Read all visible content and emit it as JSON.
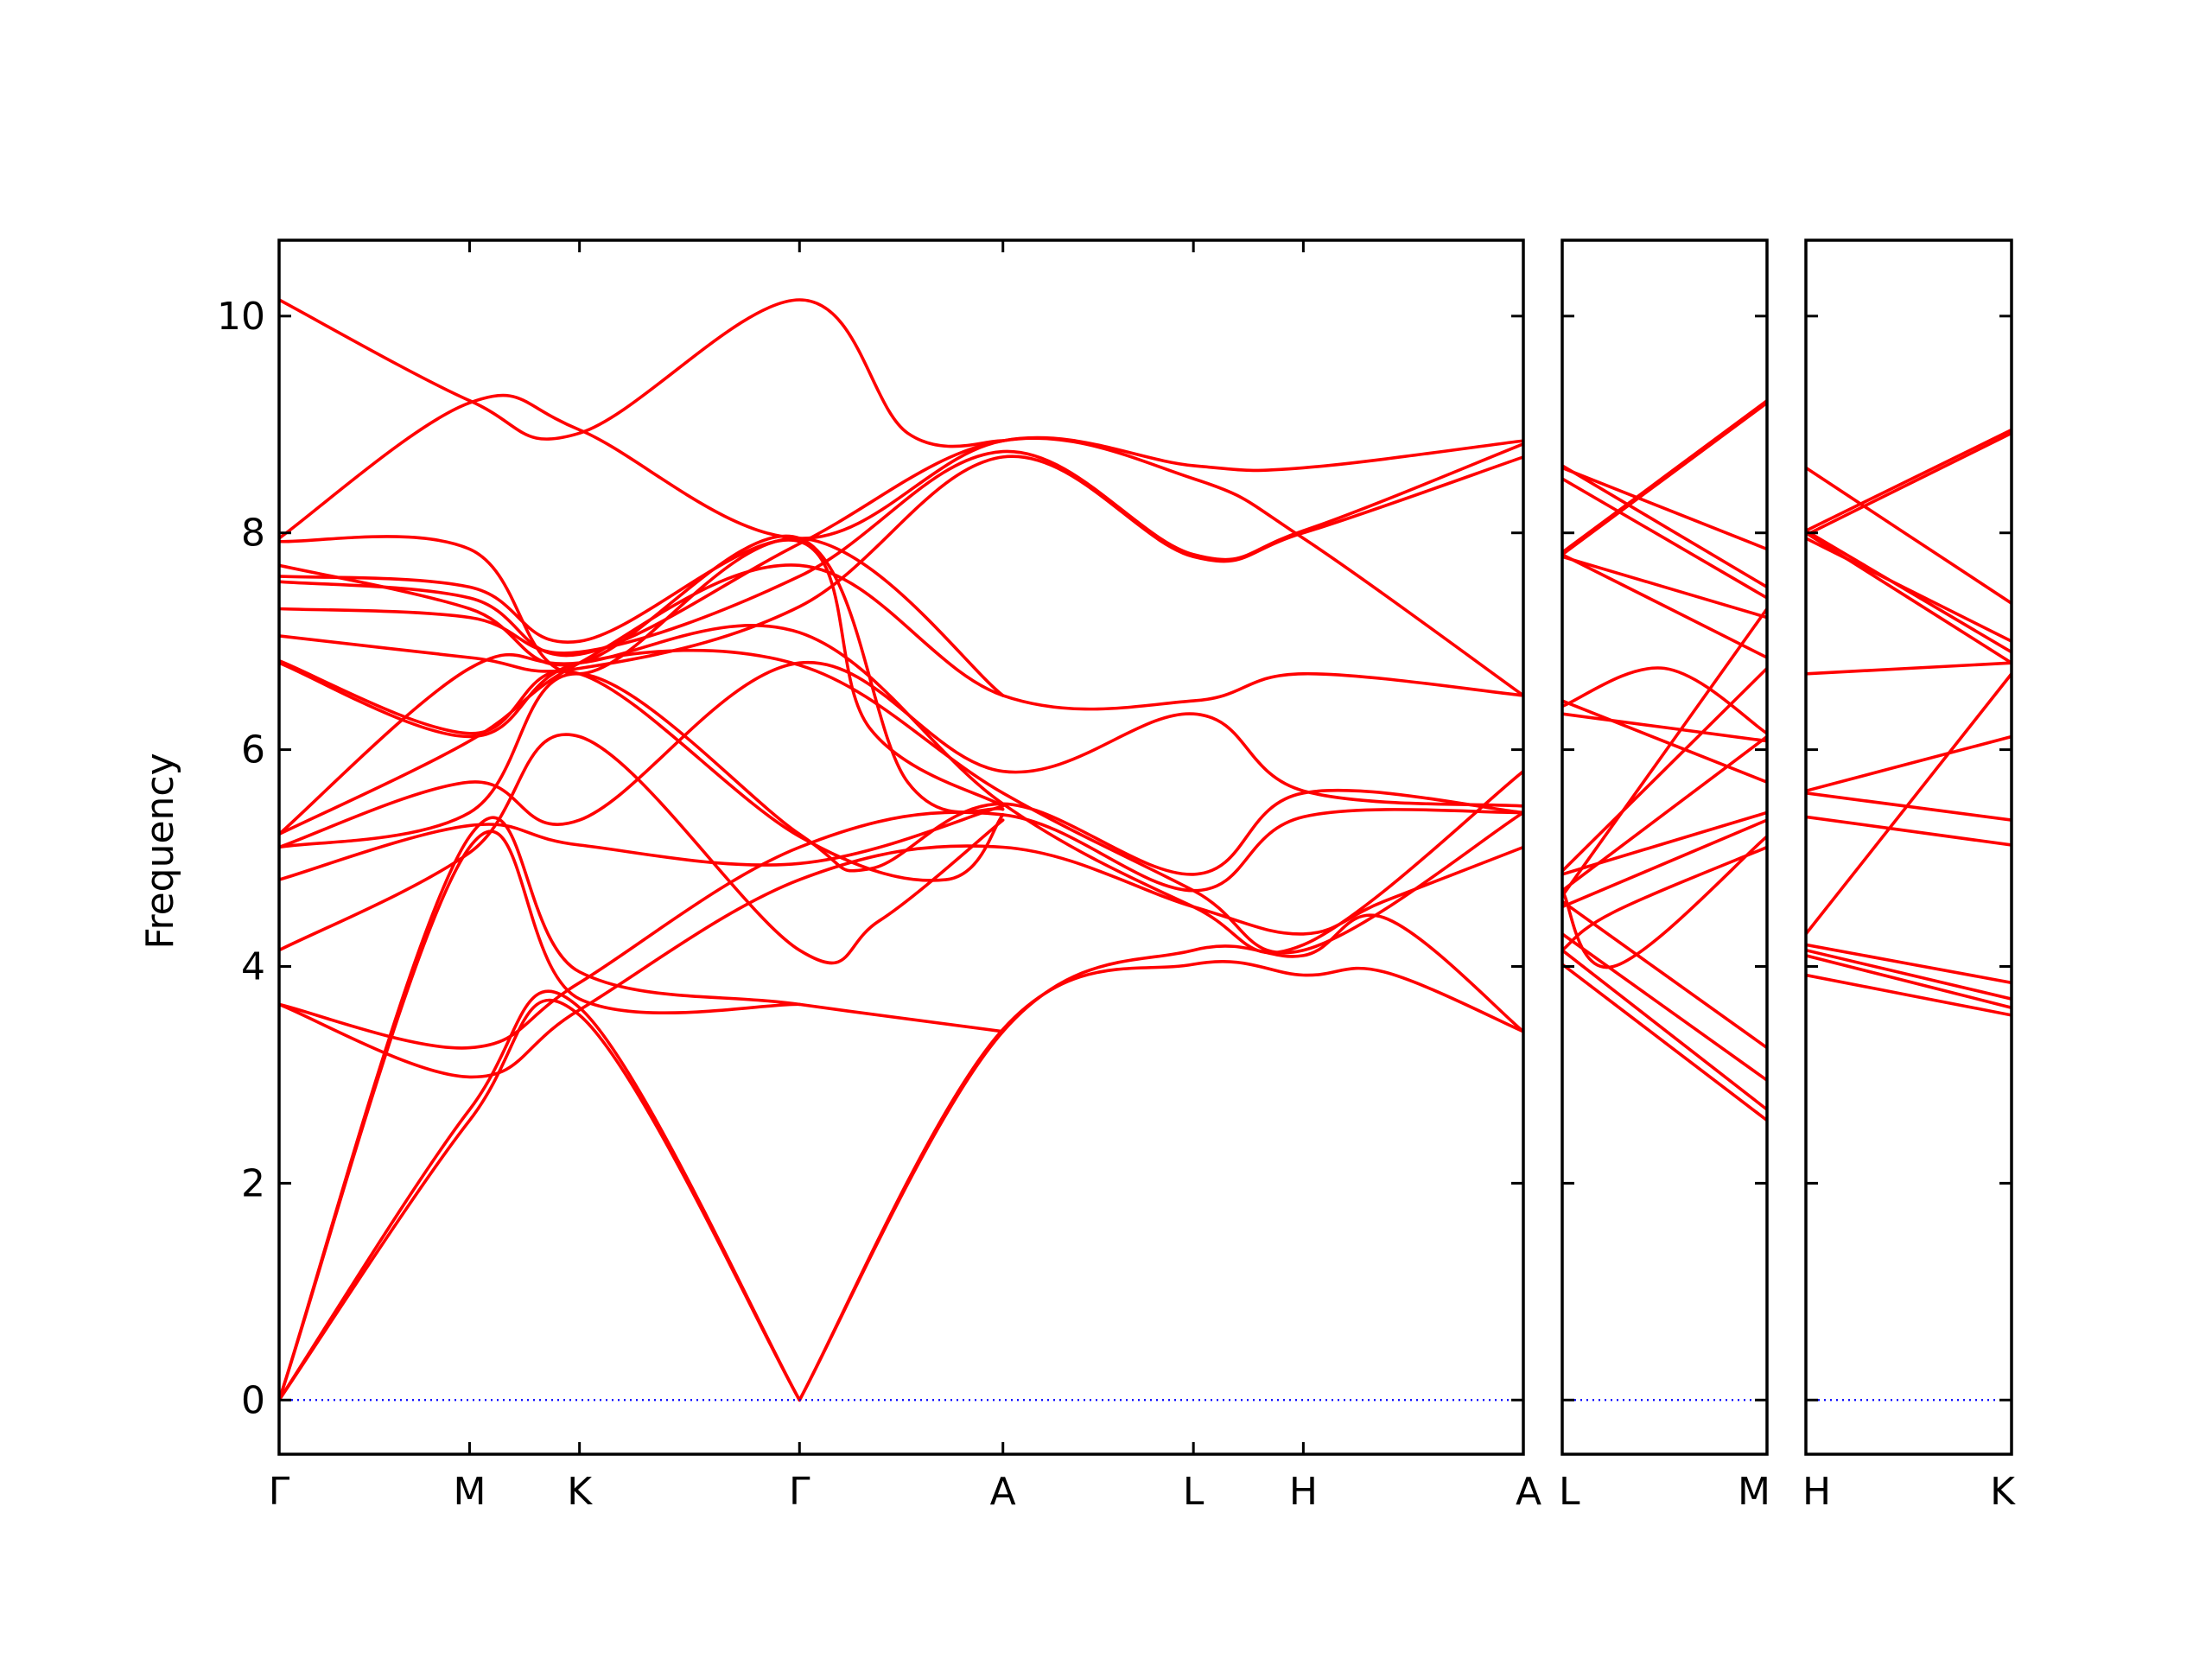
{
  "chart_data": {
    "type": "line",
    "ylabel": "Frequency",
    "ylim": [
      -0.5,
      10.7
    ],
    "yticks": [
      0,
      2,
      4,
      6,
      8,
      10
    ],
    "band_color": "#ff0000",
    "zero_line_color": "#0000ff",
    "panels": [
      {
        "name": "panel-main",
        "x_labels": [
          "Γ",
          "M",
          "K",
          "Γ",
          "A",
          "L",
          "H",
          "A"
        ],
        "x_positions": [
          0,
          1,
          1.577,
          2.732,
          3.8,
          4.8,
          5.377,
          6.532
        ],
        "bands": [
          {
            "x": [
              0,
              1,
              1.577,
              2.732
            ],
            "y": [
              0,
              2.58,
              3.55,
              0
            ]
          },
          {
            "x": [
              0,
              1,
              1.577,
              2.732
            ],
            "y": [
              0,
              2.68,
              3.62,
              0
            ]
          },
          {
            "x": [
              0,
              1,
              1.577,
              2.732
            ],
            "y": [
              0,
              5.1,
              3.7,
              3.65
            ]
          },
          {
            "x": [
              0,
              1,
              1.577,
              2.732,
              3.8
            ],
            "y": [
              0,
              5.2,
              3.95,
              3.65,
              3.4
            ]
          },
          {
            "x": [
              2.732,
              3.8,
              4.8,
              5.377,
              5.8,
              6.532
            ],
            "y": [
              0,
              3.4,
              4.15,
              4.1,
              4.45,
              3.4
            ]
          },
          {
            "x": [
              2.732,
              3.8,
              4.8,
              5.377,
              5.8,
              6.532
            ],
            "y": [
              0,
              3.42,
              4.02,
              3.92,
              3.95,
              3.4
            ]
          },
          {
            "x": [
              0,
              1,
              1.577,
              2.732,
              3.8,
              4.8,
              5.377,
              5.8,
              6.532
            ],
            "y": [
              3.65,
              2.98,
              3.6,
              4.8,
              5.1,
              4.55,
              4.3,
              4.6,
              5.1
            ]
          },
          {
            "x": [
              0,
              1,
              1.577,
              2.732,
              3.8,
              4.8,
              5.377,
              6.532
            ],
            "y": [
              3.65,
              3.25,
              3.85,
              5.1,
              5.4,
              4.7,
              5.38,
              5.42
            ]
          },
          {
            "x": [
              0,
              1,
              1.577,
              2.732,
              3.15,
              3.8
            ],
            "y": [
              4.15,
              5.05,
              6.12,
              4.15,
              4.42,
              5.35
            ]
          },
          {
            "x": [
              0,
              1,
              1.577,
              2.732,
              3.8
            ],
            "y": [
              4.8,
              5.3,
              5.12,
              4.95,
              5.48
            ]
          },
          {
            "x": [
              0,
              1,
              1.577,
              2.732,
              3.1,
              3.8,
              4.8,
              5.377,
              6.532
            ],
            "y": [
              5.1,
              5.42,
              6.7,
              5.22,
              4.9,
              5.5,
              4.85,
              5.6,
              5.42
            ]
          },
          {
            "x": [
              0,
              1,
              1.577,
              2.732,
              3.8,
              4.8,
              5.377,
              6.532
            ],
            "y": [
              5.1,
              5.7,
              5.35,
              6.8,
              5.8,
              6.33,
              5.62,
              5.48
            ]
          },
          {
            "x": [
              0,
              1,
              1.577,
              2.732,
              3.8,
              4.8,
              5.377,
              6.532
            ],
            "y": [
              5.22,
              6.08,
              6.8,
              7.7,
              6.5,
              6.45,
              6.7,
              6.5
            ]
          },
          {
            "x": [
              0,
              1,
              1.577,
              2.732,
              3.8,
              4.8,
              5.377,
              6.532
            ],
            "y": [
              5.22,
              6.75,
              6.8,
              7.08,
              5.5,
              4.55,
              4.2,
              5.8
            ]
          },
          {
            "x": [
              0,
              1,
              1.577,
              2.732,
              3.8,
              4.8,
              5.377,
              6.532
            ],
            "y": [
              6.8,
              6.12,
              6.8,
              6.78,
              5.6,
              4.7,
              4.15,
              5.42
            ]
          },
          {
            "x": [
              0,
              1,
              1.577,
              2.732,
              3.5,
              3.8
            ],
            "y": [
              6.82,
              6.15,
              6.7,
              5.2,
              4.8,
              5.4
            ]
          },
          {
            "x": [
              0,
              1,
              1.577,
              2.732,
              3.8,
              4.8,
              5.377,
              6.532
            ],
            "y": [
              7.05,
              6.85,
              6.75,
              7.32,
              8.7,
              7.78,
              8.0,
              8.7
            ]
          },
          {
            "x": [
              0,
              1,
              1.577,
              2.732,
              3.8,
              4.8,
              5.377,
              6.532
            ],
            "y": [
              7.3,
              7.22,
              6.9,
              7.6,
              8.75,
              7.8,
              8.02,
              8.82
            ]
          },
          {
            "x": [
              0,
              1,
              1.577,
              2.732,
              3.8,
              4.8,
              5.377,
              6.532
            ],
            "y": [
              7.55,
              7.4,
              6.88,
              7.9,
              8.85,
              8.5,
              7.95,
              6.5
            ]
          },
          {
            "x": [
              0,
              1,
              1.577,
              2.732,
              3.1,
              3.8
            ],
            "y": [
              7.6,
              7.5,
              7.0,
              7.92,
              6.2,
              5.48
            ]
          },
          {
            "x": [
              0,
              1,
              1.577,
              2.732,
              3.3,
              3.8
            ],
            "y": [
              7.7,
              7.3,
              6.8,
              7.95,
              5.7,
              5.45
            ]
          },
          {
            "x": [
              0,
              1,
              1.577,
              2.732,
              3.8
            ],
            "y": [
              7.92,
              7.85,
              6.7,
              7.95,
              6.5
            ]
          },
          {
            "x": [
              0,
              1,
              1.577,
              2.732,
              3.8,
              4.8,
              5.377,
              6.532
            ],
            "y": [
              7.95,
              9.2,
              8.95,
              7.95,
              8.85,
              8.62,
              8.6,
              8.85
            ]
          },
          {
            "x": [
              0,
              1,
              1.577,
              2.732,
              3.3,
              3.8
            ],
            "y": [
              10.15,
              9.22,
              8.92,
              10.15,
              8.92,
              8.85
            ]
          },
          {
            "x": [
              0,
              6.532
            ],
            "y": [
              0,
              0
            ],
            "style": "zero"
          }
        ]
      },
      {
        "name": "panel-lm",
        "x_labels": [
          "L",
          "M"
        ],
        "x_positions": [
          0,
          1
        ],
        "bands": [
          {
            "x": [
              0,
              1
            ],
            "y": [
              4.02,
              2.58
            ]
          },
          {
            "x": [
              0,
              1
            ],
            "y": [
              4.15,
              2.68
            ]
          },
          {
            "x": [
              0,
              1
            ],
            "y": [
              4.3,
              2.95
            ]
          },
          {
            "x": [
              0,
              1
            ],
            "y": [
              4.6,
              3.25
            ]
          },
          {
            "x": [
              0,
              0.25,
              1
            ],
            "y": [
              4.15,
              4.5,
              5.1
            ]
          },
          {
            "x": [
              0,
              0.25,
              1
            ],
            "y": [
              4.7,
              4.0,
              5.2
            ]
          },
          {
            "x": [
              0,
              1
            ],
            "y": [
              4.55,
              5.35
            ]
          },
          {
            "x": [
              0,
              1
            ],
            "y": [
              4.85,
              5.42
            ]
          },
          {
            "x": [
              0,
              1
            ],
            "y": [
              6.45,
              5.7
            ]
          },
          {
            "x": [
              0,
              1
            ],
            "y": [
              6.33,
              6.08
            ]
          },
          {
            "x": [
              0,
              1
            ],
            "y": [
              4.7,
              6.12
            ]
          },
          {
            "x": [
              0,
              0.5,
              1
            ],
            "y": [
              6.4,
              6.75,
              6.15
            ]
          },
          {
            "x": [
              0,
              1
            ],
            "y": [
              4.88,
              6.75
            ]
          },
          {
            "x": [
              0,
              1
            ],
            "y": [
              7.8,
              6.85
            ]
          },
          {
            "x": [
              0,
              1
            ],
            "y": [
              7.78,
              7.22
            ]
          },
          {
            "x": [
              0,
              1
            ],
            "y": [
              4.65,
              7.3
            ]
          },
          {
            "x": [
              0,
              1
            ],
            "y": [
              8.5,
              7.4
            ]
          },
          {
            "x": [
              0,
              1
            ],
            "y": [
              8.62,
              7.5
            ]
          },
          {
            "x": [
              0,
              1
            ],
            "y": [
              8.6,
              7.85
            ]
          },
          {
            "x": [
              0,
              1
            ],
            "y": [
              7.8,
              9.2
            ]
          },
          {
            "x": [
              0,
              1
            ],
            "y": [
              7.82,
              9.22
            ]
          },
          {
            "x": [
              0,
              1
            ],
            "y": [
              0,
              0
            ],
            "style": "zero"
          }
        ]
      },
      {
        "name": "panel-hk",
        "x_labels": [
          "H",
          "K"
        ],
        "x_positions": [
          0,
          1
        ],
        "bands": [
          {
            "x": [
              0,
              1
            ],
            "y": [
              3.92,
              3.55
            ]
          },
          {
            "x": [
              0,
              1
            ],
            "y": [
              4.1,
              3.62
            ]
          },
          {
            "x": [
              0,
              1
            ],
            "y": [
              4.15,
              3.7
            ]
          },
          {
            "x": [
              0,
              1
            ],
            "y": [
              4.2,
              3.85
            ]
          },
          {
            "x": [
              0,
              1
            ],
            "y": [
              4.3,
              6.7
            ]
          },
          {
            "x": [
              0,
              1
            ],
            "y": [
              5.38,
              5.12
            ]
          },
          {
            "x": [
              0,
              1
            ],
            "y": [
              5.6,
              5.35
            ]
          },
          {
            "x": [
              0,
              1
            ],
            "y": [
              5.62,
              6.12
            ]
          },
          {
            "x": [
              0,
              1
            ],
            "y": [
              6.7,
              6.8
            ]
          },
          {
            "x": [
              0,
              1
            ],
            "y": [
              8.0,
              6.8
            ]
          },
          {
            "x": [
              0,
              1
            ],
            "y": [
              8.02,
              6.9
            ]
          },
          {
            "x": [
              0,
              1
            ],
            "y": [
              7.95,
              7.0
            ]
          },
          {
            "x": [
              0,
              1
            ],
            "y": [
              8.6,
              7.35
            ]
          },
          {
            "x": [
              0,
              1
            ],
            "y": [
              7.98,
              8.92
            ]
          },
          {
            "x": [
              0,
              1
            ],
            "y": [
              8.02,
              8.95
            ]
          },
          {
            "x": [
              0,
              1
            ],
            "y": [
              0,
              0
            ],
            "style": "zero"
          }
        ]
      }
    ]
  }
}
